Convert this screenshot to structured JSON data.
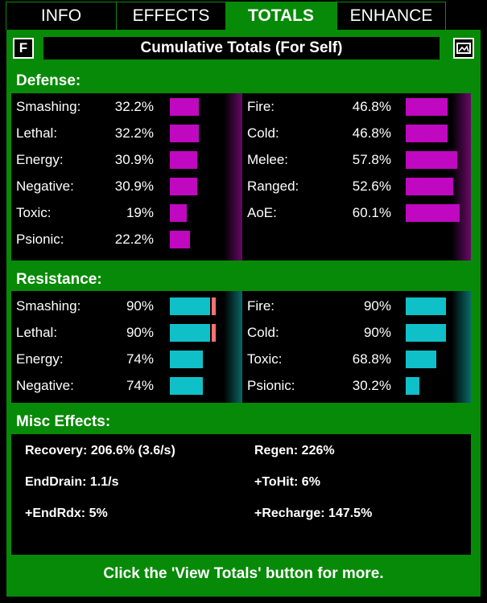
{
  "tabs": [
    {
      "label": "INFO"
    },
    {
      "label": "EFFECTS"
    },
    {
      "label": "TOTALS"
    },
    {
      "label": "ENHANCE"
    }
  ],
  "header": {
    "f_button": "F",
    "title": "Cumulative Totals (For Self)",
    "image_icon": "picture-icon"
  },
  "defense": {
    "title": "Defense:",
    "bar_color": "#c008c0",
    "left": [
      {
        "label": "Smashing:",
        "value": "32.2%",
        "pct": 32.2
      },
      {
        "label": "Lethal:",
        "value": "32.2%",
        "pct": 32.2
      },
      {
        "label": "Energy:",
        "value": "30.9%",
        "pct": 30.9
      },
      {
        "label": "Negative:",
        "value": "30.9%",
        "pct": 30.9
      },
      {
        "label": "Toxic:",
        "value": "19%",
        "pct": 19
      },
      {
        "label": "Psionic:",
        "value": "22.2%",
        "pct": 22.2
      }
    ],
    "right": [
      {
        "label": "Fire:",
        "value": "46.8%",
        "pct": 46.8
      },
      {
        "label": "Cold:",
        "value": "46.8%",
        "pct": 46.8
      },
      {
        "label": "Melee:",
        "value": "57.8%",
        "pct": 57.8
      },
      {
        "label": "Ranged:",
        "value": "52.6%",
        "pct": 52.6
      },
      {
        "label": "AoE:",
        "value": "60.1%",
        "pct": 60.1
      }
    ]
  },
  "resistance": {
    "title": "Resistance:",
    "bar_color": "#10c0c8",
    "left": [
      {
        "label": "Smashing:",
        "value": "90%",
        "pct": 90,
        "capped": true
      },
      {
        "label": "Lethal:",
        "value": "90%",
        "pct": 90,
        "capped": true
      },
      {
        "label": "Energy:",
        "value": "74%",
        "pct": 74,
        "capped": false
      },
      {
        "label": "Negative:",
        "value": "74%",
        "pct": 74,
        "capped": false
      }
    ],
    "right": [
      {
        "label": "Fire:",
        "value": "90%",
        "pct": 90,
        "capped": false
      },
      {
        "label": "Cold:",
        "value": "90%",
        "pct": 90,
        "capped": false
      },
      {
        "label": "Toxic:",
        "value": "68.8%",
        "pct": 68.8,
        "capped": false
      },
      {
        "label": "Psionic:",
        "value": "30.2%",
        "pct": 30.2,
        "capped": false
      }
    ]
  },
  "misc": {
    "title": "Misc Effects:",
    "recovery": "Recovery: 206.6% (3.6/s)",
    "regen": "Regen:  226%",
    "enddrain": "EndDrain:  1.1/s",
    "tohit": "+ToHit:  6%",
    "endrdx": "+EndRdx: 5%",
    "recharge": "+Recharge:  147.5%"
  },
  "footer": "Click the 'View Totals' button for more."
}
